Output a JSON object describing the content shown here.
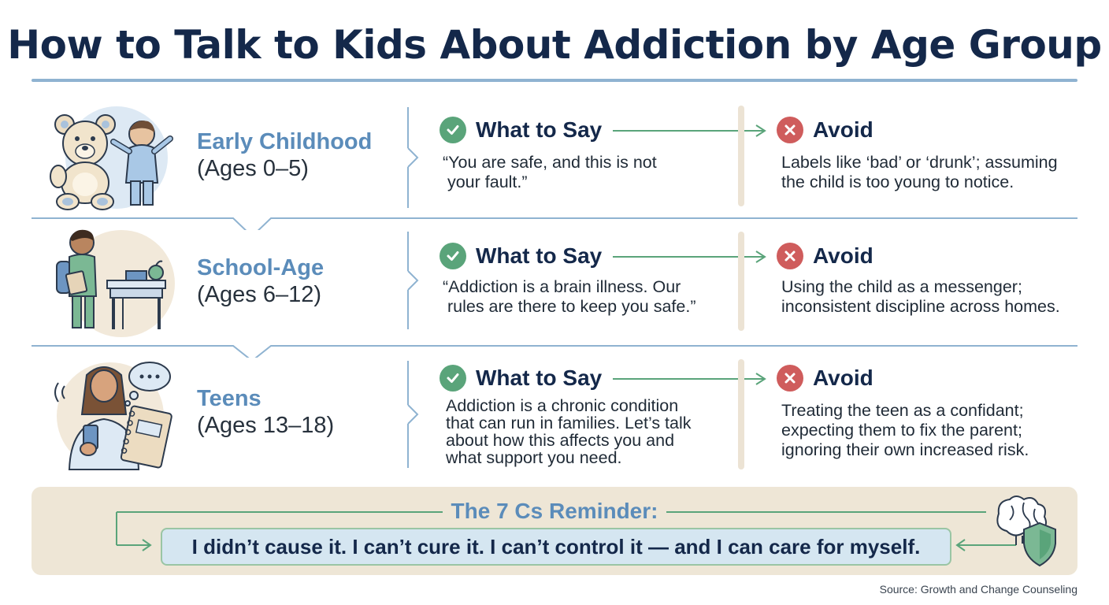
{
  "title": "How to Talk to Kids About Addiction by Age Group",
  "say_heading": "What to Say",
  "avoid_heading": "Avoid",
  "groups": [
    {
      "name": "Early Childhood",
      "ages": "(Ages 0–5)",
      "illustration_icon": "teddy-bear-and-toddler-icon",
      "say": [
        "“You are safe, and this is not",
        " your fault.”"
      ],
      "avoid": [
        "Labels like ‘bad’ or ‘drunk’; assuming",
        "the child is too young to notice."
      ]
    },
    {
      "name": "School-Age",
      "ages": "(Ages 6–12)",
      "illustration_icon": "student-at-desk-icon",
      "say": [
        "“Addiction is a brain illness. Our",
        " rules are there to keep you safe.”"
      ],
      "avoid": [
        "Using the child as a messenger;",
        "inconsistent discipline across homes."
      ]
    },
    {
      "name": "Teens",
      "ages": "(Ages 13–18)",
      "illustration_icon": "teen-with-phone-and-notebook-icon",
      "say": [
        "Addiction is a chronic condition",
        "that can run in families. Let’s talk",
        "about how this affects you and",
        "what support you need."
      ],
      "avoid": [
        "Treating the teen as a confidant;",
        "expecting them to fix the parent;",
        "ignoring their own increased risk."
      ]
    }
  ],
  "reminder": {
    "title": "The 7 Cs Reminder:",
    "text": "I didn’t cause it. I can’t cure it. I can’t control it — and I can care for myself.",
    "icon": "brain-and-shield-icon"
  },
  "source": "Source: Growth and Change Counseling",
  "colors": {
    "navy": "#14284a",
    "accent_blue": "#5b8cba",
    "green": "#5aa47a",
    "red": "#cf5c5c",
    "beige": "#eee6d6",
    "divider_blue": "#8fb3d1"
  }
}
